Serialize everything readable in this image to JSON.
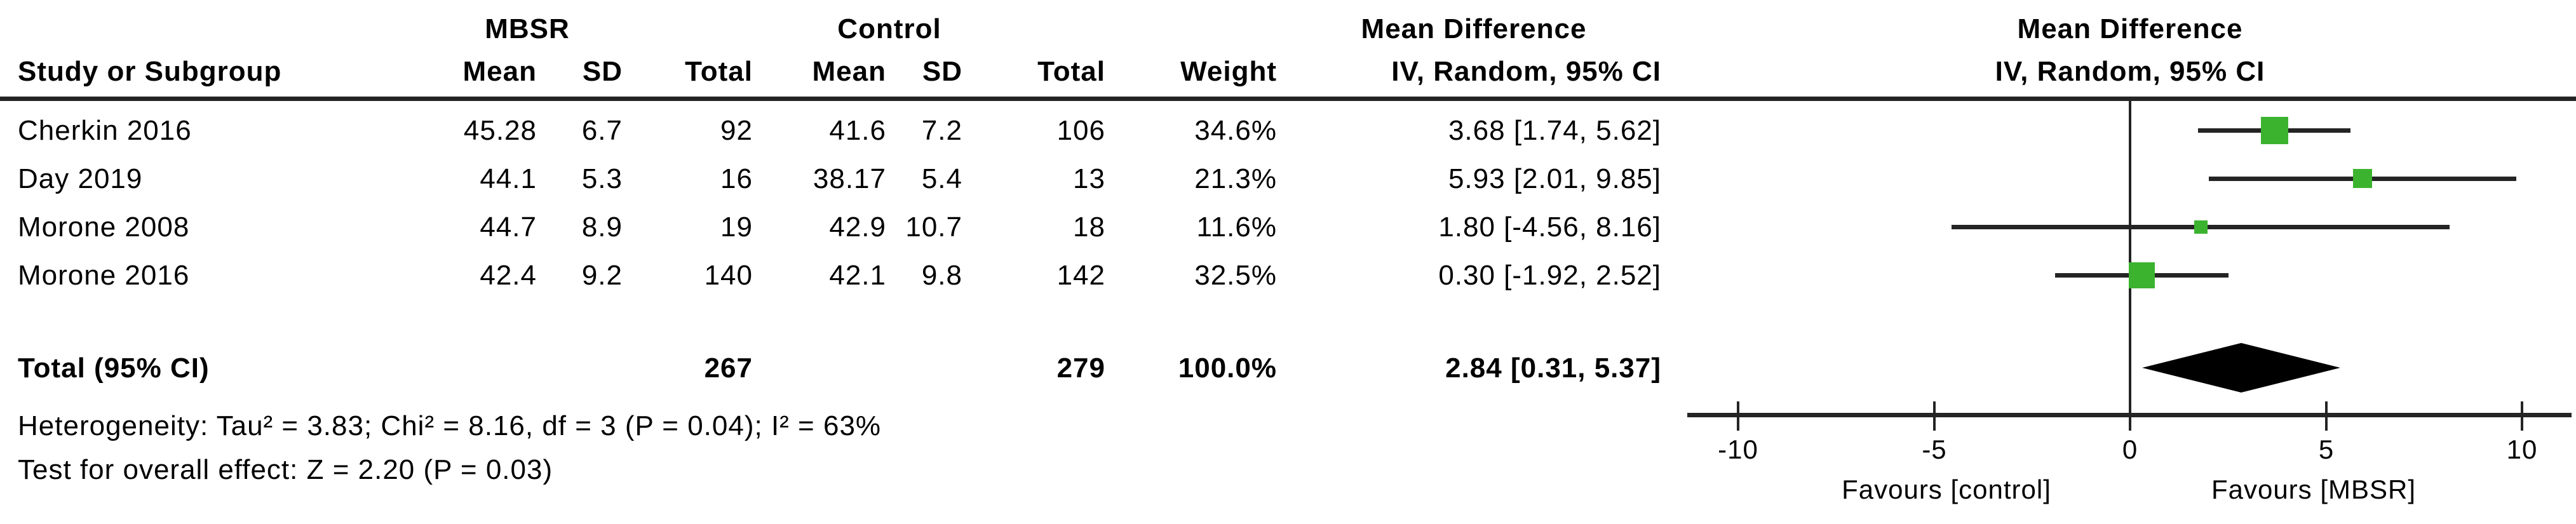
{
  "figure": {
    "group1_header": "MBSR",
    "group2_header": "Control",
    "effect_header_line1": "Mean Difference",
    "effect_header_line2": "IV, Random, 95% CI",
    "plot_header_line1": "Mean Difference",
    "plot_header_line2": "IV, Random, 95% CI",
    "headers": {
      "study": "Study or Subgroup",
      "mean1": "Mean",
      "sd1": "SD",
      "total1": "Total",
      "mean2": "Mean",
      "sd2": "SD",
      "total2": "Total",
      "weight": "Weight"
    },
    "studies": [
      {
        "name": "Cherkin 2016",
        "m_mean": "45.28",
        "m_sd": "6.7",
        "m_total": "92",
        "c_mean": "41.6",
        "c_sd": "7.2",
        "c_total": "106",
        "weight": "34.6%",
        "effect": "3.68 [1.74, 5.62]"
      },
      {
        "name": "Day 2019",
        "m_mean": "44.1",
        "m_sd": "5.3",
        "m_total": "16",
        "c_mean": "38.17",
        "c_sd": "5.4",
        "c_total": "13",
        "weight": "21.3%",
        "effect": "5.93 [2.01, 9.85]"
      },
      {
        "name": "Morone 2008",
        "m_mean": "44.7",
        "m_sd": "8.9",
        "m_total": "19",
        "c_mean": "42.9",
        "c_sd": "10.7",
        "c_total": "18",
        "weight": "11.6%",
        "effect": "1.80 [-4.56, 8.16]"
      },
      {
        "name": "Morone 2016",
        "m_mean": "42.4",
        "m_sd": "9.2",
        "m_total": "140",
        "c_mean": "42.1",
        "c_sd": "9.8",
        "c_total": "142",
        "weight": "32.5%",
        "effect": "0.30 [-1.92, 2.52]"
      }
    ],
    "total_row": {
      "label": "Total (95% CI)",
      "m_total": "267",
      "c_total": "279",
      "weight": "100.0%",
      "effect": "2.84 [0.31, 5.37]"
    },
    "heterogeneity": "Heterogeneity: Tau² = 3.83; Chi² = 8.16, df = 3 (P = 0.04); I² = 63%",
    "overall_effect": "Test for overall effect: Z = 2.20 (P = 0.03)",
    "favours_left": "Favours [control]",
    "favours_right": "Favours [MBSR]"
  },
  "chart_data": {
    "type": "scatter",
    "subtype": "forest-plot",
    "title": "Mean Difference, IV, Random, 95% CI",
    "xlabel_left": "Favours [control]",
    "xlabel_right": "Favours [MBSR]",
    "x_axis": {
      "min": -10,
      "max": 10,
      "ticks": [
        -10,
        -5,
        0,
        5,
        10
      ],
      "zero_reference_line": 0
    },
    "series": [
      {
        "name": "Cherkin 2016",
        "md": 3.68,
        "ci_low": 1.74,
        "ci_high": 5.62,
        "weight_pct": 34.6
      },
      {
        "name": "Day 2019",
        "md": 5.93,
        "ci_low": 2.01,
        "ci_high": 9.85,
        "weight_pct": 21.3
      },
      {
        "name": "Morone 2008",
        "md": 1.8,
        "ci_low": -4.56,
        "ci_high": 8.16,
        "weight_pct": 11.6
      },
      {
        "name": "Morone 2016",
        "md": 0.3,
        "ci_low": -1.92,
        "ci_high": 2.52,
        "weight_pct": 32.5
      }
    ],
    "total_diamond": {
      "md": 2.84,
      "ci_low": 0.31,
      "ci_high": 5.37
    }
  },
  "colors": {
    "marker_green": "#3cb32f",
    "line_dark": "#242424",
    "diamond_black": "#000000"
  }
}
